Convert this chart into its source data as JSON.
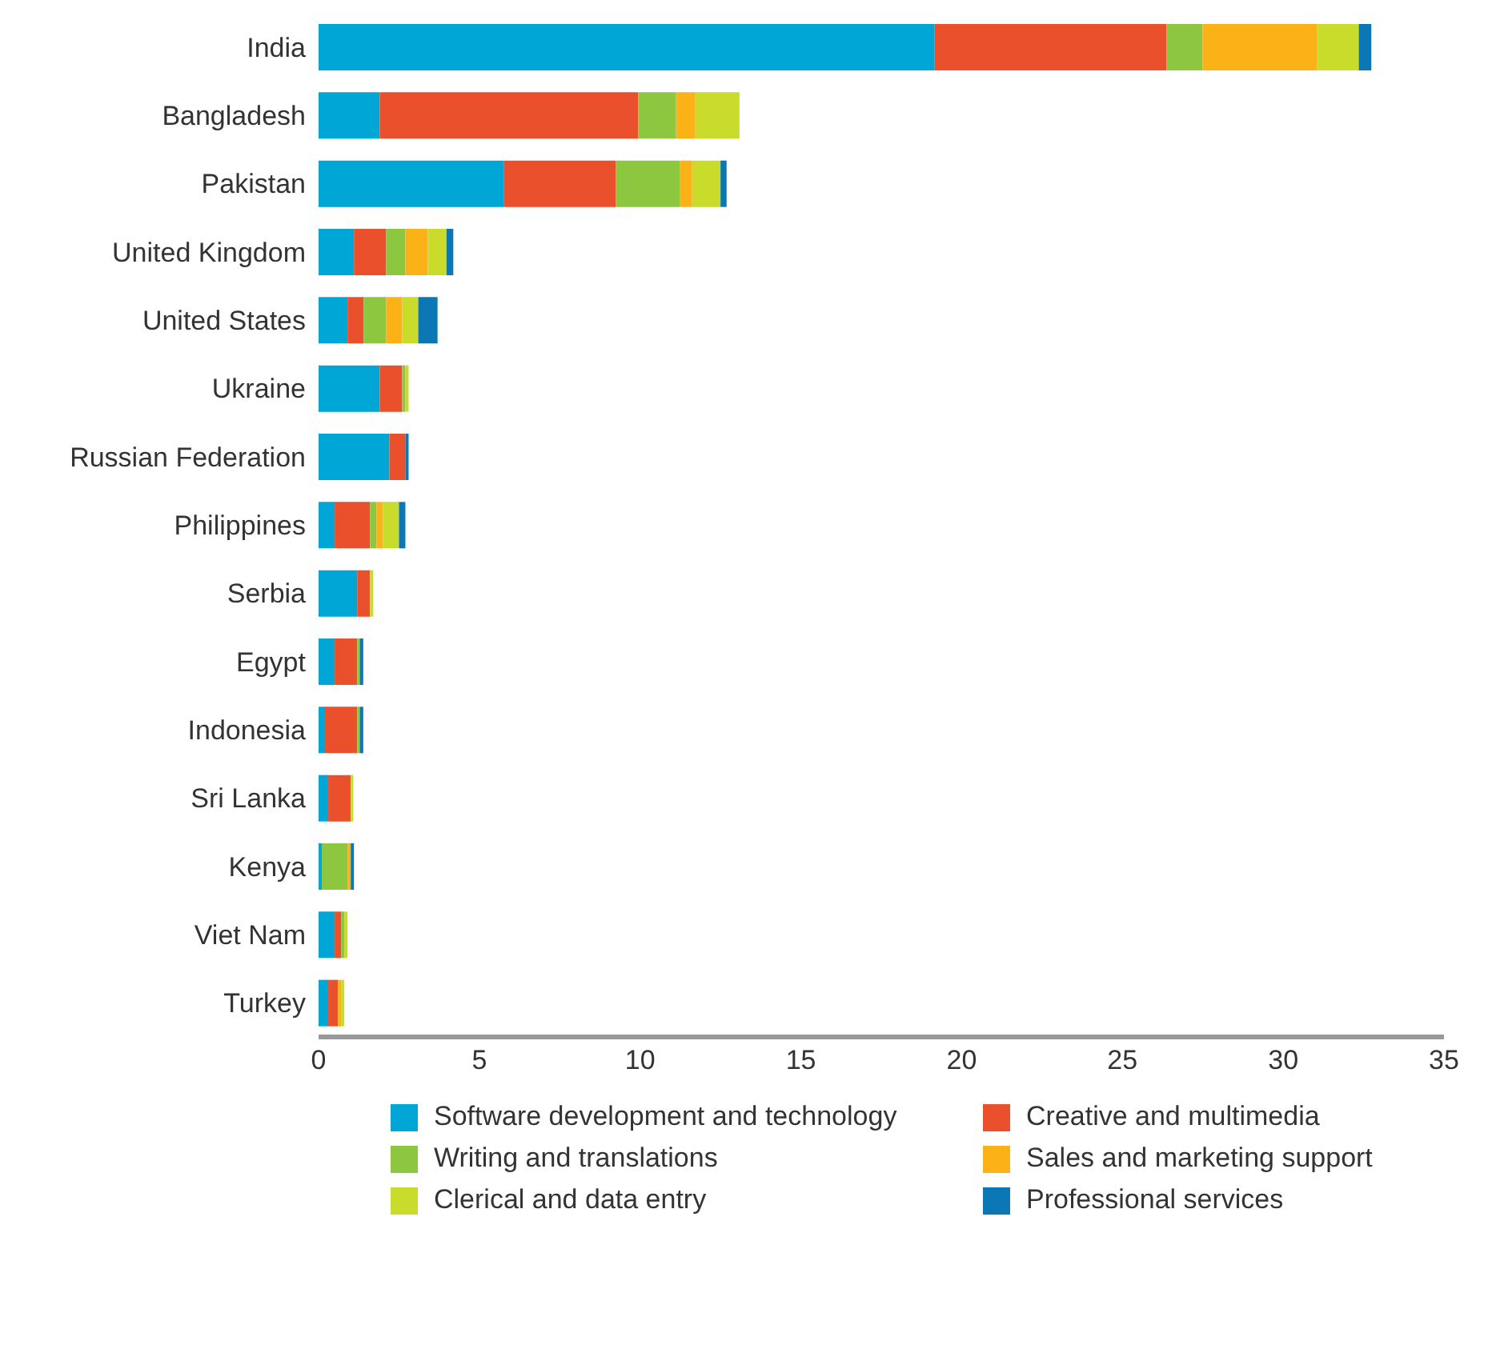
{
  "chart_data": {
    "type": "bar",
    "orientation": "horizontal",
    "stacked": true,
    "categories": [
      "India",
      "Bangladesh",
      "Pakistan",
      "United Kingdom",
      "United States",
      "Ukraine",
      "Russian Federation",
      "Philippines",
      "Serbia",
      "Egypt",
      "Indonesia",
      "Sri Lanka",
      "Kenya",
      "Viet Nam",
      "Turkey"
    ],
    "series": [
      {
        "name": "Software development and technology",
        "color": "#00a6d6",
        "values": [
          19.15,
          1.9,
          5.77,
          1.1,
          0.9,
          1.9,
          2.2,
          0.5,
          1.2,
          0.5,
          0.2,
          0.3,
          0.1,
          0.5,
          0.3
        ]
      },
      {
        "name": "Creative and multimedia",
        "color": "#e9502b",
        "values": [
          7.22,
          8.04,
          3.48,
          1.0,
          0.5,
          0.7,
          0.5,
          1.1,
          0.4,
          0.7,
          1.0,
          0.7,
          0,
          0.2,
          0.3
        ]
      },
      {
        "name": "Writing and translations",
        "color": "#8dc63f",
        "values": [
          1.12,
          1.18,
          1.98,
          0.6,
          0.7,
          0.1,
          0,
          0.2,
          0,
          0.08,
          0.08,
          0,
          0.8,
          0.1,
          0
        ]
      },
      {
        "name": "Sales and marketing support",
        "color": "#fbb216",
        "values": [
          3.57,
          0.6,
          0.39,
          0.7,
          0.5,
          0,
          0,
          0.2,
          0,
          0,
          0,
          0,
          0.1,
          0,
          0.1
        ]
      },
      {
        "name": "Clerical and data entry",
        "color": "#c9dc2b",
        "values": [
          1.29,
          1.37,
          0.88,
          0.58,
          0.5,
          0.1,
          0,
          0.5,
          0.1,
          0,
          0,
          0.08,
          0,
          0.1,
          0.1
        ]
      },
      {
        "name": "Professional services",
        "color": "#0b78b5",
        "values": [
          0.39,
          0,
          0.19,
          0.21,
          0.6,
          0,
          0.1,
          0.2,
          0,
          0.11,
          0.11,
          0,
          0.1,
          0,
          0
        ]
      }
    ],
    "xlim": [
      0,
      35
    ],
    "xticks": [
      0,
      5,
      10,
      15,
      20,
      25,
      30,
      35
    ],
    "legend": "bottom"
  }
}
